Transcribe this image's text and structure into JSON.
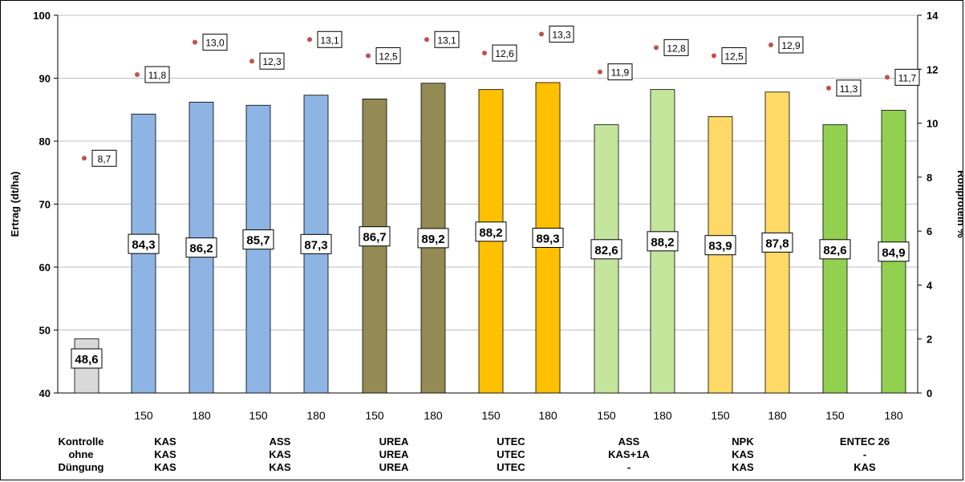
{
  "chart_data": {
    "type": "bar",
    "ylabel": "Ertrag (dt/ha)",
    "y2label": "Rohprotein %",
    "ylim": [
      40,
      100
    ],
    "y2lim": [
      0,
      14
    ],
    "yticks": [
      "40",
      "50",
      "60",
      "70",
      "80",
      "90",
      "100"
    ],
    "y2ticks": [
      "0",
      "2",
      "4",
      "6",
      "8",
      "10",
      "12",
      "14"
    ],
    "x_ticks": [
      "",
      "150",
      "180",
      "150",
      "180",
      "150",
      "180",
      "150",
      "180",
      "150",
      "180",
      "150",
      "180",
      "150",
      "180"
    ],
    "series": [
      {
        "name": "Ertrag (dt/ha)",
        "values": [
          48.6,
          84.3,
          86.2,
          85.7,
          87.3,
          86.7,
          89.2,
          88.2,
          89.3,
          82.6,
          88.2,
          83.9,
          87.8,
          82.6,
          84.9
        ],
        "labels": [
          "48,6",
          "84,3",
          "86,2",
          "85,7",
          "87,3",
          "86,7",
          "89,2",
          "88,2",
          "89,3",
          "82,6",
          "88,2",
          "83,9",
          "87,8",
          "82,6",
          "84,9"
        ],
        "colors": [
          "#d9d9d9",
          "#8db4e2",
          "#8db4e2",
          "#8db4e2",
          "#8db4e2",
          "#948a54",
          "#948a54",
          "#ffc000",
          "#ffc000",
          "#c4e59c",
          "#c4e59c",
          "#ffd966",
          "#ffd966",
          "#92d050",
          "#92d050"
        ]
      },
      {
        "name": "Rohprotein %",
        "values": [
          8.7,
          11.8,
          13.0,
          12.3,
          13.1,
          12.5,
          13.1,
          12.6,
          13.3,
          11.9,
          12.8,
          12.5,
          12.9,
          11.3,
          11.7
        ],
        "labels": [
          "8,7",
          "11,8",
          "13,0",
          "12,3",
          "13,1",
          "12,5",
          "13,1",
          "12,6",
          "13,3",
          "11,9",
          "12,8",
          "12,5",
          "12,9",
          "11,3",
          "11,7"
        ],
        "color": "#c0504d"
      }
    ],
    "groups": [
      {
        "lines": [
          "Kontrolle",
          "ohne",
          "Düngung"
        ]
      },
      {
        "lines": [
          "KAS",
          "KAS",
          "KAS"
        ]
      },
      {
        "lines": [
          "ASS",
          "KAS",
          "KAS"
        ]
      },
      {
        "lines": [
          "UREA",
          "UREA",
          "UREA"
        ]
      },
      {
        "lines": [
          "UTEC",
          "UTEC",
          "UTEC"
        ]
      },
      {
        "lines": [
          "ASS",
          "KAS+1A",
          "-"
        ]
      },
      {
        "lines": [
          "NPK",
          "KAS",
          "KAS"
        ]
      },
      {
        "lines": [
          "ENTEC 26",
          "-",
          "KAS"
        ]
      }
    ]
  }
}
